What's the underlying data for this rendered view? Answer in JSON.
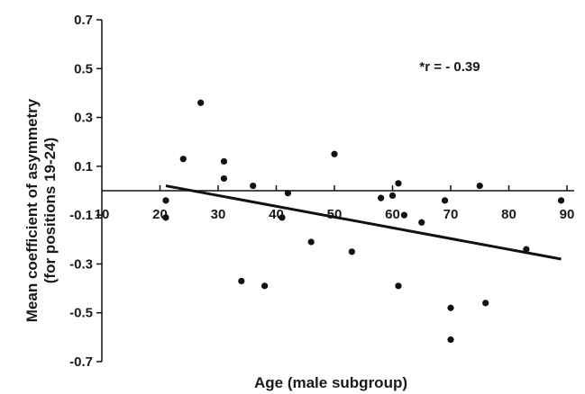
{
  "chart_data": {
    "type": "scatter",
    "title": "",
    "xlabel": "Age (male subgroup)",
    "ylabel_line1": "Mean coefficient of asymmetry",
    "ylabel_line2": "(for positions 19-24)",
    "xlim": [
      10,
      90
    ],
    "ylim": [
      -0.7,
      0.7
    ],
    "xticks": [
      10,
      20,
      30,
      40,
      50,
      60,
      70,
      80,
      90
    ],
    "xtick_labels": [
      "10",
      "20",
      "30",
      "40",
      "50",
      "60",
      "70",
      "80",
      "90"
    ],
    "yticks": [
      0.7,
      0.5,
      0.3,
      0.1,
      -0.1,
      -0.3,
      -0.5,
      -0.7
    ],
    "ytick_labels": [
      "0.7",
      "0.5",
      "0.3",
      "0.1",
      "-0.1",
      "-0.3",
      "-0.5",
      "-0.7"
    ],
    "grid": false,
    "annotation": "*r = - 0.39",
    "points": [
      {
        "x": 21,
        "y": -0.04
      },
      {
        "x": 21,
        "y": -0.11
      },
      {
        "x": 24,
        "y": 0.13
      },
      {
        "x": 27,
        "y": 0.36
      },
      {
        "x": 31,
        "y": 0.12
      },
      {
        "x": 31,
        "y": 0.05
      },
      {
        "x": 34,
        "y": -0.37
      },
      {
        "x": 36,
        "y": 0.02
      },
      {
        "x": 38,
        "y": -0.39
      },
      {
        "x": 41,
        "y": -0.11
      },
      {
        "x": 42,
        "y": -0.01
      },
      {
        "x": 46,
        "y": -0.21
      },
      {
        "x": 50,
        "y": 0.15
      },
      {
        "x": 53,
        "y": -0.25
      },
      {
        "x": 58,
        "y": -0.03
      },
      {
        "x": 60,
        "y": -0.02
      },
      {
        "x": 61,
        "y": 0.03
      },
      {
        "x": 61,
        "y": -0.39
      },
      {
        "x": 62,
        "y": -0.1
      },
      {
        "x": 65,
        "y": -0.13
      },
      {
        "x": 69,
        "y": -0.04
      },
      {
        "x": 70,
        "y": -0.48
      },
      {
        "x": 70,
        "y": -0.61
      },
      {
        "x": 75,
        "y": 0.02
      },
      {
        "x": 76,
        "y": -0.46
      },
      {
        "x": 83,
        "y": -0.24
      },
      {
        "x": 89,
        "y": -0.04
      }
    ],
    "trendline": {
      "x": [
        21,
        89
      ],
      "y": [
        0.02,
        -0.28
      ]
    },
    "colors": {
      "points": "#111111",
      "trendline": "#111111",
      "axes": "#111111"
    }
  }
}
